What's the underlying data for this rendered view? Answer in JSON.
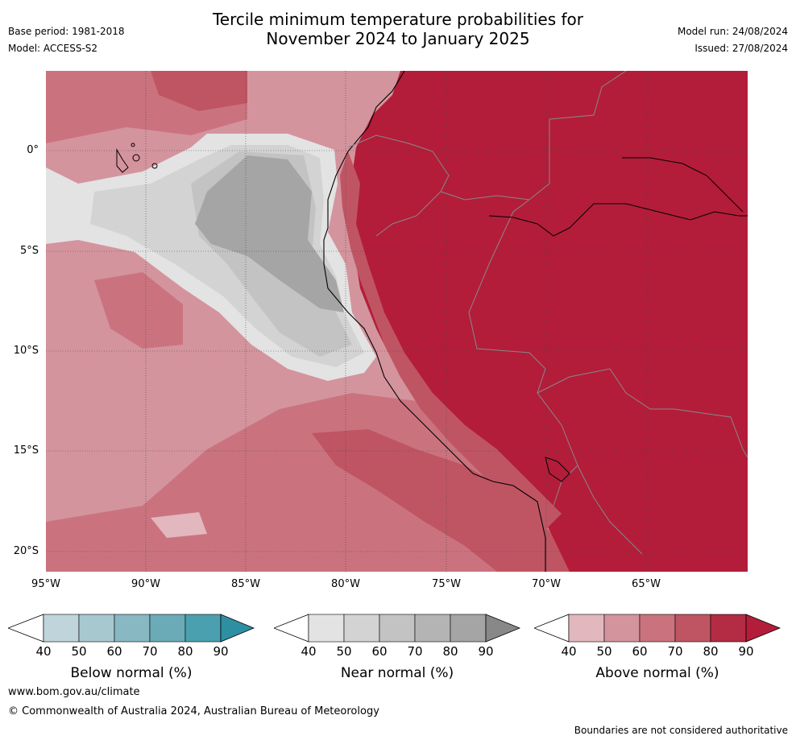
{
  "title_line1": "Tercile minimum temperature probabilities for",
  "title_line2": "November 2024 to January 2025",
  "meta": {
    "base_period": "Base period: 1981-2018",
    "model": "Model: ACCESS-S2",
    "model_run": "Model run: 24/08/2024",
    "issued": "Issued: 27/08/2024"
  },
  "axes": {
    "lat_labels": [
      "0°",
      "5°S",
      "10°S",
      "15°S",
      "20°S"
    ],
    "lon_labels": [
      "95°W",
      "90°W",
      "85°W",
      "80°W",
      "75°W",
      "70°W",
      "65°W"
    ]
  },
  "colorbars": [
    {
      "title": "Below normal (%)",
      "ticks": [
        "40",
        "50",
        "60",
        "70",
        "80",
        "90"
      ],
      "colors": [
        "#bfd5db",
        "#a7c8ce",
        "#88b8c2",
        "#6aabb7",
        "#4ba0b0",
        "#2e8fa2"
      ]
    },
    {
      "title": "Near normal (%)",
      "ticks": [
        "40",
        "50",
        "60",
        "70",
        "80",
        "90"
      ],
      "colors": [
        "#e3e3e3",
        "#d3d3d3",
        "#c3c3c3",
        "#b4b4b4",
        "#a5a5a5",
        "#888888"
      ]
    },
    {
      "title": "Above normal (%)",
      "ticks": [
        "40",
        "50",
        "60",
        "70",
        "80",
        "90"
      ],
      "colors": [
        "#e2b7bd",
        "#d4949d",
        "#ca737f",
        "#bf5563",
        "#b32c44",
        "#b31d3a"
      ]
    }
  ],
  "footer": {
    "url": "www.bom.gov.au/climate",
    "copyright": "© Commonwealth of Australia 2024, Australian Bureau of Meteorology",
    "note": "Boundaries are not considered authoritative"
  }
}
